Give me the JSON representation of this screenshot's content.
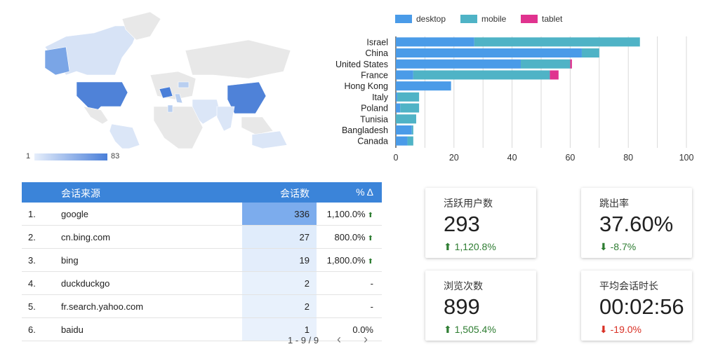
{
  "map": {
    "scale_min": "1",
    "scale_max": "83",
    "colors": {
      "low": "#dbe6f7",
      "high": "#4a7fd9",
      "none": "#e8e8e8"
    }
  },
  "bar_legend": [
    {
      "label": "desktop",
      "color": "#4a9be8"
    },
    {
      "label": "mobile",
      "color": "#4fb3c6"
    },
    {
      "label": "tablet",
      "color": "#e0338f"
    }
  ],
  "chart_data": {
    "type": "bar",
    "orientation": "horizontal",
    "stacked": true,
    "categories": [
      "Israel",
      "China",
      "United States",
      "France",
      "Hong Kong",
      "Italy",
      "Poland",
      "Tunisia",
      "Bangladesh",
      "Canada"
    ],
    "series": [
      {
        "name": "desktop",
        "values": [
          27,
          64,
          43,
          6,
          19,
          0.5,
          1.5,
          0,
          5.5,
          4
        ]
      },
      {
        "name": "mobile",
        "values": [
          57,
          6,
          17,
          47,
          0,
          7.5,
          6.5,
          7,
          0.5,
          2
        ]
      },
      {
        "name": "tablet",
        "values": [
          0,
          0,
          0.6,
          3,
          0,
          0,
          0,
          0,
          0,
          0
        ]
      }
    ],
    "xlim": [
      0,
      100
    ],
    "xticks": [
      "0",
      "20",
      "40",
      "60",
      "80",
      "100"
    ],
    "grid": true,
    "legend": "top"
  },
  "table": {
    "headers": {
      "source": "会话来源",
      "sessions": "会话数",
      "pct": "% Δ"
    },
    "rows": [
      {
        "idx": "1.",
        "source": "google",
        "sessions": "336",
        "pct": "1,100.0%",
        "trend": "up",
        "heat": 1.0
      },
      {
        "idx": "2.",
        "source": "cn.bing.com",
        "sessions": "27",
        "pct": "800.0%",
        "trend": "up",
        "heat": 0.08
      },
      {
        "idx": "3.",
        "source": "bing",
        "sessions": "19",
        "pct": "1,800.0%",
        "trend": "up",
        "heat": 0.06
      },
      {
        "idx": "4.",
        "source": "duckduckgo",
        "sessions": "2",
        "pct": "-",
        "trend": "none",
        "heat": 0.01
      },
      {
        "idx": "5.",
        "source": "fr.search.yahoo.com",
        "sessions": "2",
        "pct": "-",
        "trend": "none",
        "heat": 0.01
      },
      {
        "idx": "6.",
        "source": "baidu",
        "sessions": "1",
        "pct": "0.0%",
        "trend": "none",
        "heat": 0.005
      }
    ],
    "pager": "1 - 9 / 9"
  },
  "kpis": [
    {
      "title": "活跃用户数",
      "value": "293",
      "delta": "1,120.8%",
      "arrow": "⬆",
      "tone": "delta-up"
    },
    {
      "title": "跳出率",
      "value": "37.60%",
      "delta": "-8.7%",
      "arrow": "⬇",
      "tone": "delta-down-green"
    },
    {
      "title": "浏览次数",
      "value": "899",
      "delta": "1,505.4%",
      "arrow": "⬆",
      "tone": "delta-up"
    },
    {
      "title": "平均会话时长",
      "value": "00:02:56",
      "delta": "-19.0%",
      "arrow": "⬇",
      "tone": "delta-down-red"
    }
  ]
}
